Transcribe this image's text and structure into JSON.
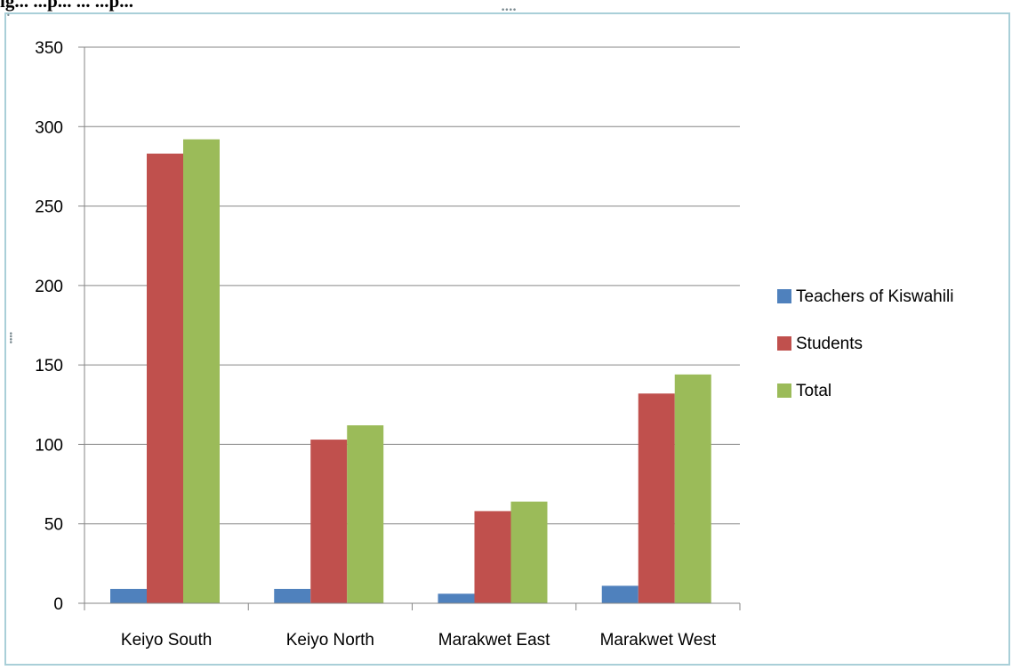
{
  "heading_fragment": "ig... ...p... ... ...p...",
  "chart_data": {
    "type": "bar",
    "title": "",
    "xlabel": "",
    "ylabel": "",
    "categories": [
      "Keiyo South",
      "Keiyo North",
      "Marakwet East",
      "Marakwet West"
    ],
    "series": [
      {
        "name": "Teachers of Kiswahili",
        "color": "#4f81bd",
        "values": [
          9,
          9,
          6,
          11
        ]
      },
      {
        "name": "Students",
        "color": "#c0504d",
        "values": [
          283,
          103,
          58,
          132
        ]
      },
      {
        "name": "Total",
        "color": "#9bbb59",
        "values": [
          292,
          112,
          64,
          144
        ]
      }
    ],
    "ylim": [
      0,
      350
    ],
    "yticks": [
      0,
      50,
      100,
      150,
      200,
      250,
      300,
      350
    ],
    "grid": true,
    "legend_position": "right"
  }
}
